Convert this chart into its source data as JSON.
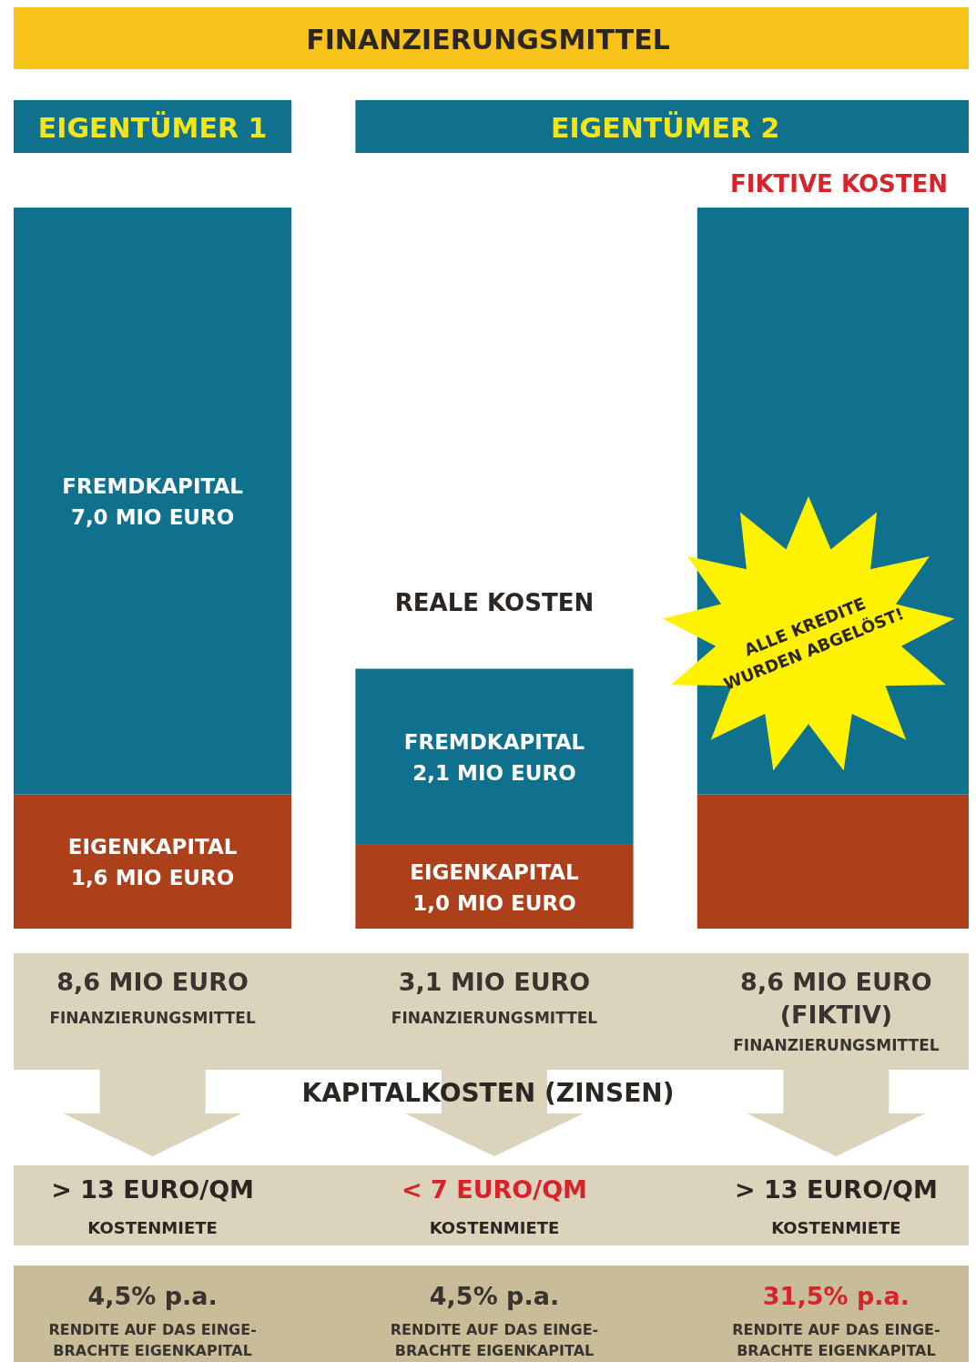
{
  "chart_data": {
    "type": "bar",
    "title": "FINANZIERUNGSMITTEL",
    "stacked": true,
    "categories": [
      null,
      "REALE KOSTEN",
      "FIKTIVE KOSTEN"
    ],
    "series": [
      {
        "color": "#ac401a",
        "values": [
          1.6,
          1.0,
          1.6
        ],
        "value_labels": [
          "EIGENKAPITAL 1,6 MIO EURO",
          "EIGENKAPITAL 1,0 MIO EURO",
          null
        ]
      },
      {
        "color": "#10718f",
        "values": [
          7.0,
          2.1,
          7.0
        ],
        "value_labels": [
          "FREMDKAPITAL 7,0 MIO EURO",
          "FREMDKAPITAL 2,1 MIO EURO",
          null
        ]
      }
    ],
    "totals": [
      "8,6 MIO EURO",
      "3,1 MIO EURO",
      "8,6 MIO EURO (FIKTIV)"
    ],
    "ylim": [
      0,
      8.6
    ],
    "annotations": [
      "EIGENTÜMER 1",
      "EIGENTÜMER 2",
      "FINANZIERUNGSMITTEL",
      "FINANZIERUNGSMITTEL",
      "FINANZIERUNGSMITTEL",
      "KAPITALKOSTEN (ZINSEN)",
      "> 13 EURO/QM",
      "< 7 EURO/QM",
      "> 13 EURO/QM",
      "KOSTENMIETE",
      "KOSTENMIETE",
      "KOSTENMIETE",
      "4,5% p.a.",
      "4,5% p.a.",
      "31,5% p.a.",
      "RENDITE AUF DAS EINGE-BRACHTE EIGENKAPITAL",
      "RENDITE AUF DAS EINGE-BRACHTE EIGENKAPITAL",
      "RENDITE AUF DAS EINGE-BRACHTE EIGENKAPITAL",
      "ALLE KREDITE WURDEN ABGELÖST!"
    ]
  }
}
